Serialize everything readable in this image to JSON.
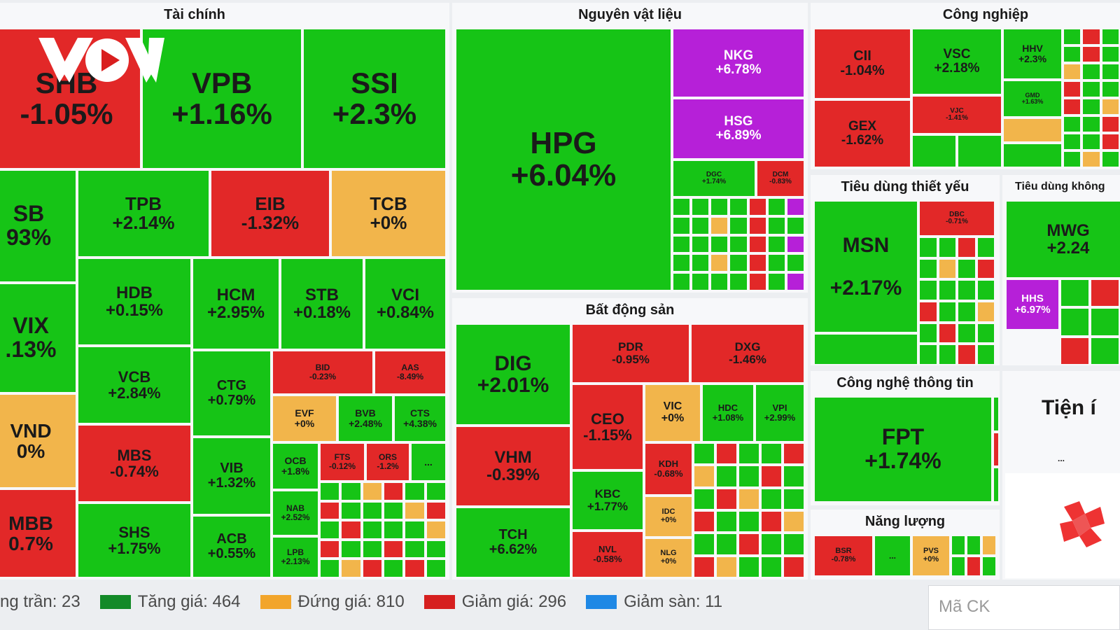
{
  "colors": {
    "up": "#16c416",
    "down": "#e22828",
    "flat": "#f2b54b",
    "ceiling": "#b620d8",
    "floor": "#1e88e5",
    "upLegend": "#138a28"
  },
  "sectors": [
    {
      "title": "Tài chính"
    },
    {
      "title": "Nguyên vật liệu"
    },
    {
      "title": "Công nghiệp"
    },
    {
      "title": "Bất động sản"
    },
    {
      "title": "Tiêu dùng thiết yếu"
    },
    {
      "title": "Tiêu dùng không"
    },
    {
      "title": "Công nghệ thông tin"
    },
    {
      "title": "Năng lượng"
    },
    {
      "title": "Tiện í"
    }
  ],
  "logo": {
    "name": "vov-logo",
    "text": "VOV"
  },
  "tiles": [
    {
      "s": "SHB",
      "c": "-1.05%",
      "k": "down"
    },
    {
      "s": "VPB",
      "c": "+1.16%",
      "k": "up"
    },
    {
      "s": "SSI",
      "c": "+2.3%",
      "k": "up"
    },
    {
      "s": "SB",
      "c": "93%",
      "k": "up"
    },
    {
      "s": "TPB",
      "c": "+2.14%",
      "k": "up"
    },
    {
      "s": "EIB",
      "c": "-1.32%",
      "k": "down"
    },
    {
      "s": "TCB",
      "c": "+0%",
      "k": "flat"
    },
    {
      "s": "VIX",
      "c": ".13%",
      "k": "up"
    },
    {
      "s": "HDB",
      "c": "+0.15%",
      "k": "up"
    },
    {
      "s": "HCM",
      "c": "+2.95%",
      "k": "up"
    },
    {
      "s": "STB",
      "c": "+0.18%",
      "k": "up"
    },
    {
      "s": "VCI",
      "c": "+0.84%",
      "k": "up"
    },
    {
      "s": "VCB",
      "c": "+2.84%",
      "k": "up"
    },
    {
      "s": "CTG",
      "c": "+0.79%",
      "k": "up"
    },
    {
      "s": "BID",
      "c": "-0.23%",
      "k": "down"
    },
    {
      "s": "AAS",
      "c": "-8.49%",
      "k": "down"
    },
    {
      "s": "EVF",
      "c": "+0%",
      "k": "flat"
    },
    {
      "s": "BVB",
      "c": "+2.48%",
      "k": "up"
    },
    {
      "s": "CTS",
      "c": "+4.38%",
      "k": "up"
    },
    {
      "s": "VND",
      "c": "0%",
      "k": "flat"
    },
    {
      "s": "MBS",
      "c": "-0.74%",
      "k": "down"
    },
    {
      "s": "VIB",
      "c": "+1.32%",
      "k": "up"
    },
    {
      "s": "OCB",
      "c": "+1.8%",
      "k": "up"
    },
    {
      "s": "FTS",
      "c": "-0.12%",
      "k": "down"
    },
    {
      "s": "ORS",
      "c": "-1.2%",
      "k": "down"
    },
    {
      "s": "...",
      "c": "",
      "k": "up"
    },
    {
      "s": "MBB",
      "c": "0.7%",
      "k": "down"
    },
    {
      "s": "SHS",
      "c": "+1.75%",
      "k": "up"
    },
    {
      "s": "ACB",
      "c": "+0.55%",
      "k": "up"
    },
    {
      "s": "NAB",
      "c": "+2.52%",
      "k": "up"
    },
    {
      "s": "LPB",
      "c": "+2.13%",
      "k": "up"
    },
    {
      "s": "HPG",
      "c": "+6.04%",
      "k": "up"
    },
    {
      "s": "NKG",
      "c": "+6.78%",
      "k": "ceiling"
    },
    {
      "s": "HSG",
      "c": "+6.89%",
      "k": "ceiling"
    },
    {
      "s": "DGC",
      "c": "+1.74%",
      "k": "up"
    },
    {
      "s": "DCM",
      "c": "-0.83%",
      "k": "down"
    },
    {
      "s": "CII",
      "c": "-1.04%",
      "k": "down"
    },
    {
      "s": "VSC",
      "c": "+2.18%",
      "k": "up"
    },
    {
      "s": "HHV",
      "c": "+2.3%",
      "k": "up"
    },
    {
      "s": "GEX",
      "c": "-1.62%",
      "k": "down"
    },
    {
      "s": "VJC",
      "c": "-1.41%",
      "k": "down"
    },
    {
      "s": "GMD",
      "c": "+1.63%",
      "k": "up"
    },
    {
      "s": "MSN",
      "c": "+2.17%",
      "k": "up"
    },
    {
      "s": "DBC",
      "c": "-0.71%",
      "k": "down"
    },
    {
      "s": "MWG",
      "c": "+2.24",
      "k": "up"
    },
    {
      "s": "HHS",
      "c": "+6.97%",
      "k": "ceiling"
    },
    {
      "s": "FPT",
      "c": "+1.74%",
      "k": "up"
    },
    {
      "s": "DIG",
      "c": "+2.01%",
      "k": "up"
    },
    {
      "s": "PDR",
      "c": "-0.95%",
      "k": "down"
    },
    {
      "s": "DXG",
      "c": "-1.46%",
      "k": "down"
    },
    {
      "s": "CEO",
      "c": "-1.15%",
      "k": "down"
    },
    {
      "s": "VIC",
      "c": "+0%",
      "k": "flat"
    },
    {
      "s": "HDC",
      "c": "+1.08%",
      "k": "up"
    },
    {
      "s": "VPI",
      "c": "+2.99%",
      "k": "up"
    },
    {
      "s": "VHM",
      "c": "-0.39%",
      "k": "down"
    },
    {
      "s": "KDH",
      "c": "-0.68%",
      "k": "down"
    },
    {
      "s": "KBC",
      "c": "+1.77%",
      "k": "up"
    },
    {
      "s": "IDC",
      "c": "+0%",
      "k": "flat"
    },
    {
      "s": "TCH",
      "c": "+6.62%",
      "k": "up"
    },
    {
      "s": "NVL",
      "c": "-0.58%",
      "k": "down"
    },
    {
      "s": "NLG",
      "c": "+0%",
      "k": "flat"
    },
    {
      "s": "BSR",
      "c": "-0.78%",
      "k": "down"
    },
    {
      "s": "PVS",
      "c": "+0%",
      "k": "flat"
    },
    {
      "s": "...",
      "c": "",
      "k": "up"
    },
    {
      "s": "...",
      "c": "",
      "k": "up"
    }
  ],
  "legend": [
    {
      "label": "ng trần: 23",
      "color": "#b620d8",
      "swatch": false
    },
    {
      "label": "Tăng giá: 464",
      "color": "#138a28",
      "swatch": true
    },
    {
      "label": "Đứng giá: 810",
      "color": "#f2a52b",
      "swatch": true
    },
    {
      "label": "Giảm giá: 296",
      "color": "#d61f1f",
      "swatch": true
    },
    {
      "label": "Giảm sàn: 11",
      "color": "#1e88e5",
      "swatch": true
    }
  ],
  "search": {
    "placeholder": "Mã CK"
  }
}
